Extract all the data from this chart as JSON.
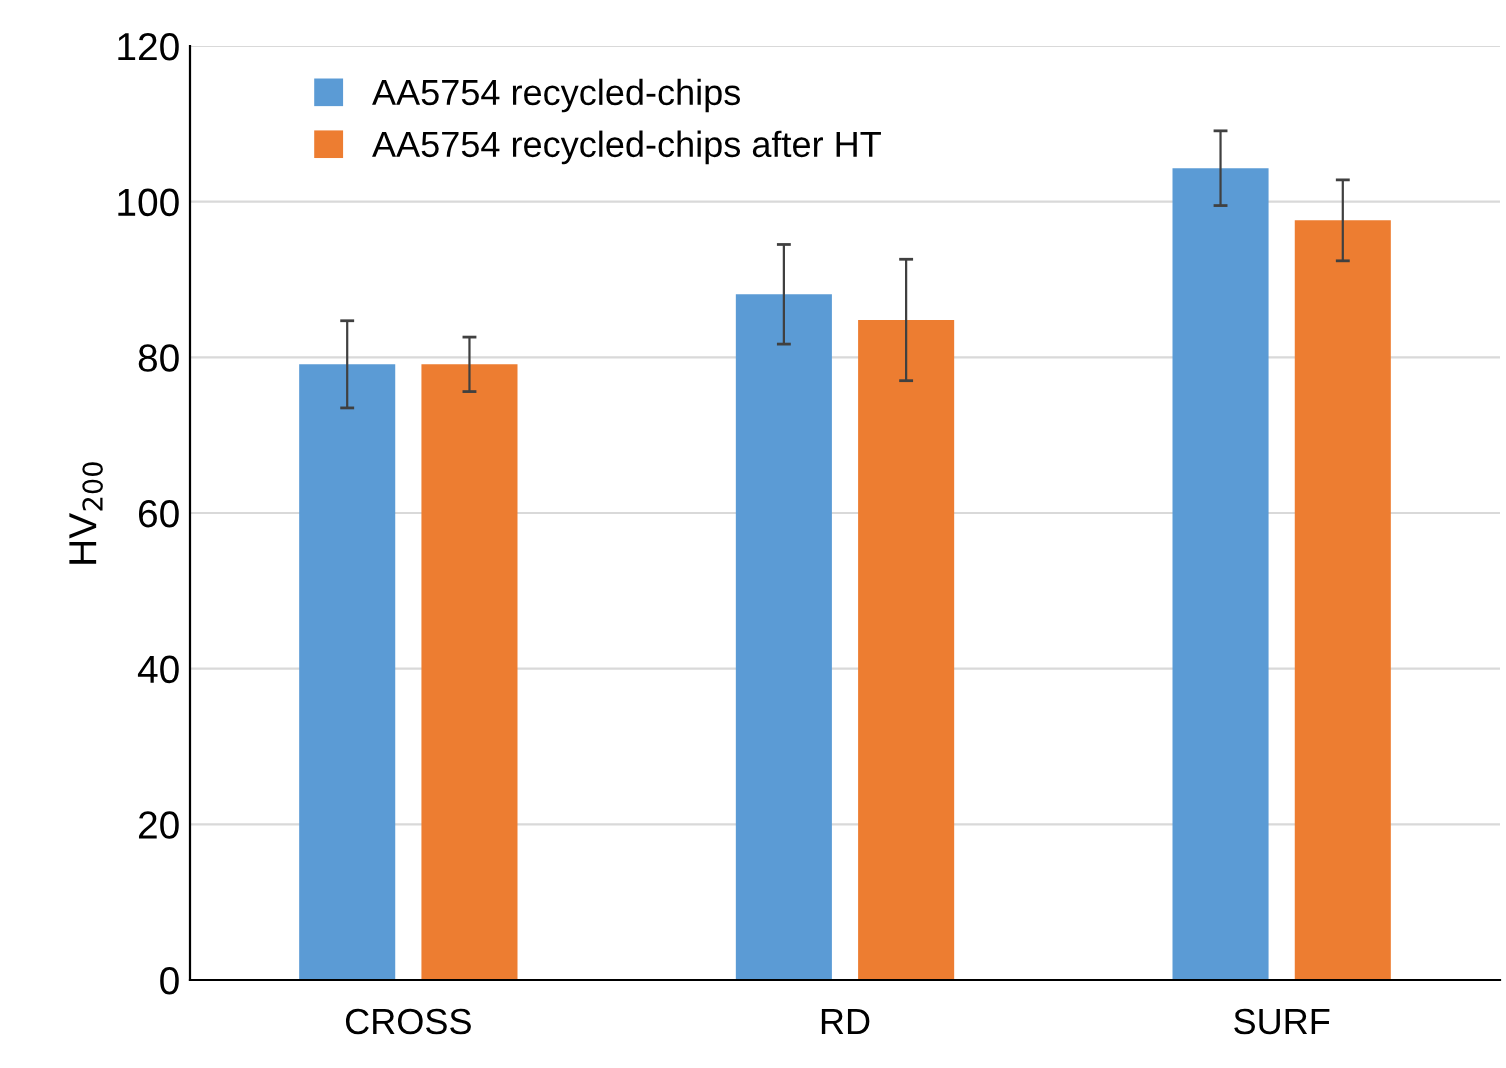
{
  "chart_data": {
    "type": "bar",
    "ylabel": "HV$_{200}$",
    "categories": [
      "CROSS",
      "RD",
      "SURF"
    ],
    "series": [
      {
        "name": "AA5754 recycled-chips",
        "color": "#5b9bd5",
        "values": [
          79.1,
          88.1,
          104.3
        ],
        "errors": [
          5.6,
          6.4,
          4.8
        ]
      },
      {
        "name": "AA5754 recycled-chips after HT",
        "color": "#ed7d31",
        "values": [
          79.1,
          84.8,
          97.6
        ],
        "errors": [
          3.5,
          7.8,
          5.2
        ]
      }
    ],
    "ylim": [
      0,
      120
    ],
    "yticks": [
      0,
      20,
      40,
      60,
      80,
      100,
      120
    ],
    "grid": "y",
    "legend": "top left"
  }
}
